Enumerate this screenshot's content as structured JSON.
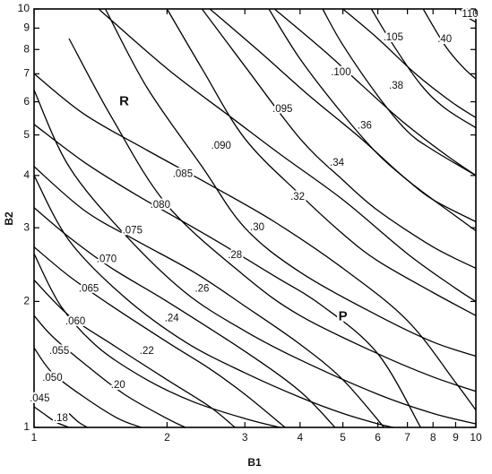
{
  "chart_data": {
    "type": "line",
    "title": "",
    "xlabel": "B1",
    "ylabel": "B2",
    "x_scale": "log",
    "y_scale": "log",
    "xlim": [
      1,
      10
    ],
    "ylim": [
      1,
      10
    ],
    "x_ticks": [
      "1",
      "2",
      "3",
      "4",
      "5",
      "6",
      "7",
      "8",
      "9",
      "10"
    ],
    "y_ticks": [
      "1",
      "2",
      "3",
      "4",
      "5",
      "6",
      "7",
      "8",
      "9",
      "10"
    ],
    "grid": false,
    "regions": [
      "R",
      "P"
    ],
    "series": [
      {
        "name": ".045",
        "family": "R",
        "x": [
          1.0,
          1.05,
          1.12,
          1.2
        ],
        "y": [
          1.12,
          1.08,
          1.03,
          1.0
        ]
      },
      {
        "name": ".050",
        "family": "R",
        "x": [
          1.0,
          1.1,
          1.3,
          1.55,
          1.75
        ],
        "y": [
          1.55,
          1.35,
          1.18,
          1.05,
          1.0
        ]
      },
      {
        "name": ".055",
        "family": "R",
        "x": [
          1.0,
          1.1,
          1.3,
          1.6,
          2.0,
          2.2
        ],
        "y": [
          1.85,
          1.65,
          1.42,
          1.2,
          1.05,
          1.0
        ]
      },
      {
        "name": ".060",
        "family": "R",
        "x": [
          1.0,
          1.2,
          1.5,
          2.0,
          2.5,
          2.85
        ],
        "y": [
          2.25,
          1.85,
          1.58,
          1.3,
          1.12,
          1.0
        ]
      },
      {
        "name": ".065",
        "family": "R",
        "x": [
          1.0,
          1.2,
          1.5,
          2.0,
          2.5,
          3.0,
          3.7
        ],
        "y": [
          2.7,
          2.3,
          1.95,
          1.6,
          1.38,
          1.2,
          1.0
        ]
      },
      {
        "name": ".070",
        "family": "R",
        "x": [
          1.0,
          1.2,
          1.5,
          2.0,
          3.0,
          4.0,
          4.8
        ],
        "y": [
          3.35,
          2.85,
          2.4,
          2.0,
          1.52,
          1.22,
          1.0
        ]
      },
      {
        "name": ".075",
        "family": "R",
        "x": [
          1.0,
          1.3,
          1.7,
          2.3,
          3.0,
          4.0,
          5.0,
          6.2
        ],
        "y": [
          4.2,
          3.3,
          2.8,
          2.35,
          1.95,
          1.58,
          1.3,
          1.0
        ]
      },
      {
        "name": ".080",
        "family": "R",
        "x": [
          1.0,
          1.3,
          1.7,
          2.5,
          3.5,
          4.5,
          6.0,
          7.5
        ],
        "y": [
          5.3,
          4.3,
          3.6,
          2.85,
          2.3,
          1.95,
          1.5,
          1.0
        ]
      },
      {
        "name": ".085",
        "family": "R",
        "x": [
          1.0,
          1.3,
          1.8,
          2.5,
          3.5,
          5.0,
          7.0,
          9.0,
          10.0
        ],
        "y": [
          7.0,
          5.6,
          4.6,
          3.8,
          3.1,
          2.4,
          1.8,
          1.28,
          1.1
        ]
      },
      {
        "name": ".090",
        "family": "R",
        "x": [
          1.4,
          2.0,
          2.8,
          3.6,
          5.0,
          7.0,
          9.0,
          10.0
        ],
        "y": [
          10.0,
          7.2,
          5.5,
          4.5,
          3.5,
          2.6,
          2.15,
          2.0
        ]
      },
      {
        "name": ".095",
        "family": "R",
        "x": [
          2.5,
          3.2,
          4.2,
          5.5,
          7.0,
          9.0,
          10.0
        ],
        "y": [
          10.0,
          8.0,
          6.2,
          4.9,
          3.9,
          3.2,
          2.95
        ]
      },
      {
        "name": ".100",
        "family": "R",
        "x": [
          3.5,
          4.5,
          5.5,
          6.8,
          8.5,
          10.0
        ],
        "y": [
          10.0,
          8.0,
          6.6,
          5.4,
          4.5,
          4.0
        ]
      },
      {
        "name": ".105",
        "family": "R",
        "x": [
          5.0,
          6.0,
          7.3,
          8.8,
          10.0
        ],
        "y": [
          10.0,
          8.5,
          7.0,
          6.0,
          5.5
        ]
      },
      {
        "name": ".110",
        "family": "R",
        "x": [
          9.2,
          9.5,
          10.0
        ],
        "y": [
          10.0,
          9.6,
          9.3
        ]
      },
      {
        "name": ".18",
        "family": "P",
        "x": [
          1.2,
          1.26,
          1.32
        ],
        "y": [
          1.08,
          1.03,
          1.0
        ]
      },
      {
        "name": ".20",
        "family": "P",
        "x": [
          1.0,
          1.15,
          1.4,
          1.8,
          2.3,
          3.0,
          3.6
        ],
        "y": [
          2.6,
          1.95,
          1.55,
          1.3,
          1.15,
          1.05,
          1.0
        ]
      },
      {
        "name": ".22",
        "family": "P",
        "x": [
          1.0,
          1.2,
          1.6,
          2.2,
          3.0,
          4.0,
          5.0,
          6.0,
          6.5
        ],
        "y": [
          4.0,
          2.8,
          2.05,
          1.6,
          1.35,
          1.18,
          1.08,
          1.02,
          1.0
        ]
      },
      {
        "name": ".24",
        "family": "P",
        "x": [
          1.0,
          1.2,
          1.6,
          2.2,
          3.0,
          4.0,
          6.0,
          8.0,
          10.0
        ],
        "y": [
          6.4,
          4.2,
          2.9,
          2.1,
          1.7,
          1.45,
          1.2,
          1.08,
          1.02
        ]
      },
      {
        "name": ".26",
        "family": "P",
        "x": [
          1.2,
          1.5,
          2.0,
          3.0,
          4.0,
          6.0,
          8.0,
          10.0
        ],
        "y": [
          8.5,
          5.5,
          3.4,
          2.3,
          1.85,
          1.5,
          1.32,
          1.22
        ]
      },
      {
        "name": ".28",
        "family": "P",
        "x": [
          1.45,
          1.8,
          2.4,
          3.0,
          4.0,
          6.0,
          8.0,
          10.0
        ],
        "y": [
          10.0,
          6.5,
          4.2,
          3.0,
          2.35,
          1.85,
          1.6,
          1.48
        ]
      },
      {
        "name": ".30",
        "family": "P",
        "x": [
          2.0,
          2.4,
          3.0,
          4.0,
          5.0,
          6.0,
          8.0,
          10.0
        ],
        "y": [
          10.0,
          7.2,
          4.9,
          3.6,
          2.9,
          2.5,
          2.1,
          1.85
        ]
      },
      {
        "name": ".32",
        "family": "P",
        "x": [
          2.4,
          3.0,
          4.0,
          5.0,
          6.0,
          8.0,
          10.0
        ],
        "y": [
          10.0,
          7.3,
          4.9,
          3.9,
          3.3,
          2.7,
          2.4
        ]
      },
      {
        "name": ".34",
        "family": "P",
        "x": [
          3.4,
          4.0,
          5.0,
          6.0,
          7.0,
          8.0,
          10.0
        ],
        "y": [
          10.0,
          7.6,
          5.6,
          4.5,
          3.9,
          3.5,
          3.1
        ]
      },
      {
        "name": ".36",
        "family": "P",
        "x": [
          4.5,
          5.0,
          6.0,
          7.0,
          8.0,
          10.0
        ],
        "y": [
          10.0,
          8.2,
          6.2,
          5.1,
          4.6,
          4.0
        ]
      },
      {
        "name": ".38",
        "family": "P",
        "x": [
          5.8,
          6.5,
          7.5,
          8.5,
          10.0
        ],
        "y": [
          10.0,
          8.2,
          6.6,
          5.8,
          5.2
        ]
      },
      {
        "name": ".40",
        "family": "P",
        "x": [
          7.6,
          8.5,
          9.3,
          10.0
        ],
        "y": [
          10.0,
          8.2,
          7.3,
          6.8
        ]
      }
    ],
    "contour_labels": [
      {
        "text": ".045",
        "x": 1.03,
        "y": 1.17
      },
      {
        "text": ".050",
        "x": 1.1,
        "y": 1.31
      },
      {
        "text": ".055",
        "x": 1.14,
        "y": 1.52
      },
      {
        "text": ".060",
        "x": 1.24,
        "y": 1.79
      },
      {
        "text": ".065",
        "x": 1.33,
        "y": 2.14
      },
      {
        "text": ".070",
        "x": 1.46,
        "y": 2.52
      },
      {
        "text": ".075",
        "x": 1.67,
        "y": 2.95
      },
      {
        "text": ".080",
        "x": 1.93,
        "y": 3.4
      },
      {
        "text": ".085",
        "x": 2.17,
        "y": 4.03
      },
      {
        "text": ".090",
        "x": 2.65,
        "y": 4.7
      },
      {
        "text": ".095",
        "x": 3.65,
        "y": 5.75
      },
      {
        "text": ".100",
        "x": 4.95,
        "y": 7.05
      },
      {
        "text": ".105",
        "x": 6.5,
        "y": 8.55
      },
      {
        "text": "110",
        "x": 9.7,
        "y": 9.7
      },
      {
        "text": ".18",
        "x": 1.15,
        "y": 1.05
      },
      {
        "text": ".20",
        "x": 1.55,
        "y": 1.26
      },
      {
        "text": ".22",
        "x": 1.8,
        "y": 1.52
      },
      {
        "text": ".24",
        "x": 2.05,
        "y": 1.82
      },
      {
        "text": ".26",
        "x": 2.4,
        "y": 2.14
      },
      {
        "text": ".28",
        "x": 2.85,
        "y": 2.58
      },
      {
        "text": ".30",
        "x": 3.2,
        "y": 3.0
      },
      {
        "text": ".32",
        "x": 3.95,
        "y": 3.55
      },
      {
        "text": ".34",
        "x": 4.85,
        "y": 4.28
      },
      {
        "text": ".36",
        "x": 5.6,
        "y": 5.26
      },
      {
        "text": ".38",
        "x": 6.6,
        "y": 6.55
      },
      {
        "text": ".40",
        "x": 8.5,
        "y": 8.45
      }
    ],
    "region_labels": [
      {
        "text": "R",
        "x": 1.6,
        "y": 6.0
      },
      {
        "text": "P",
        "x": 5.0,
        "y": 1.84
      }
    ]
  }
}
